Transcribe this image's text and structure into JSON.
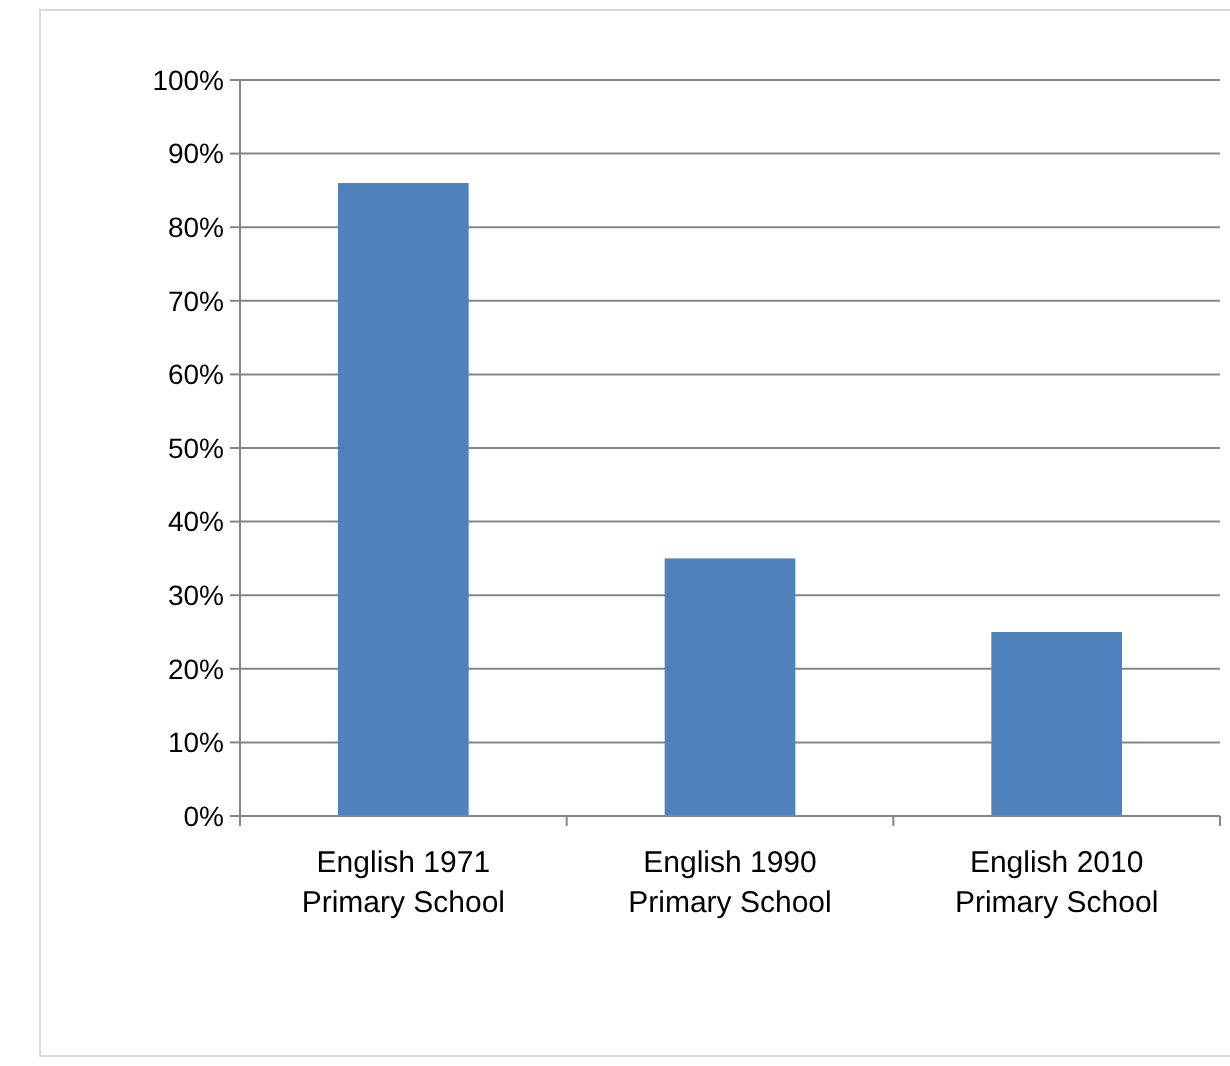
{
  "chart_data": {
    "type": "bar",
    "categories": [
      "English 1971\nPrimary School",
      "English 1990\nPrimary School",
      "English 2010\nPrimary School"
    ],
    "values": [
      86,
      35,
      25
    ],
    "color": "#4f81bd",
    "ylim": [
      0,
      100
    ],
    "yticks": [
      {
        "value": 0,
        "label": "0%"
      },
      {
        "value": 10,
        "label": "10%"
      },
      {
        "value": 20,
        "label": "20%"
      },
      {
        "value": 30,
        "label": "30%"
      },
      {
        "value": 40,
        "label": "40%"
      },
      {
        "value": 50,
        "label": "50%"
      },
      {
        "value": 60,
        "label": "60%"
      },
      {
        "value": 70,
        "label": "70%"
      },
      {
        "value": 80,
        "label": "80%"
      },
      {
        "value": 90,
        "label": "90%"
      },
      {
        "value": 100,
        "label": "100%"
      }
    ],
    "grid": "y"
  }
}
